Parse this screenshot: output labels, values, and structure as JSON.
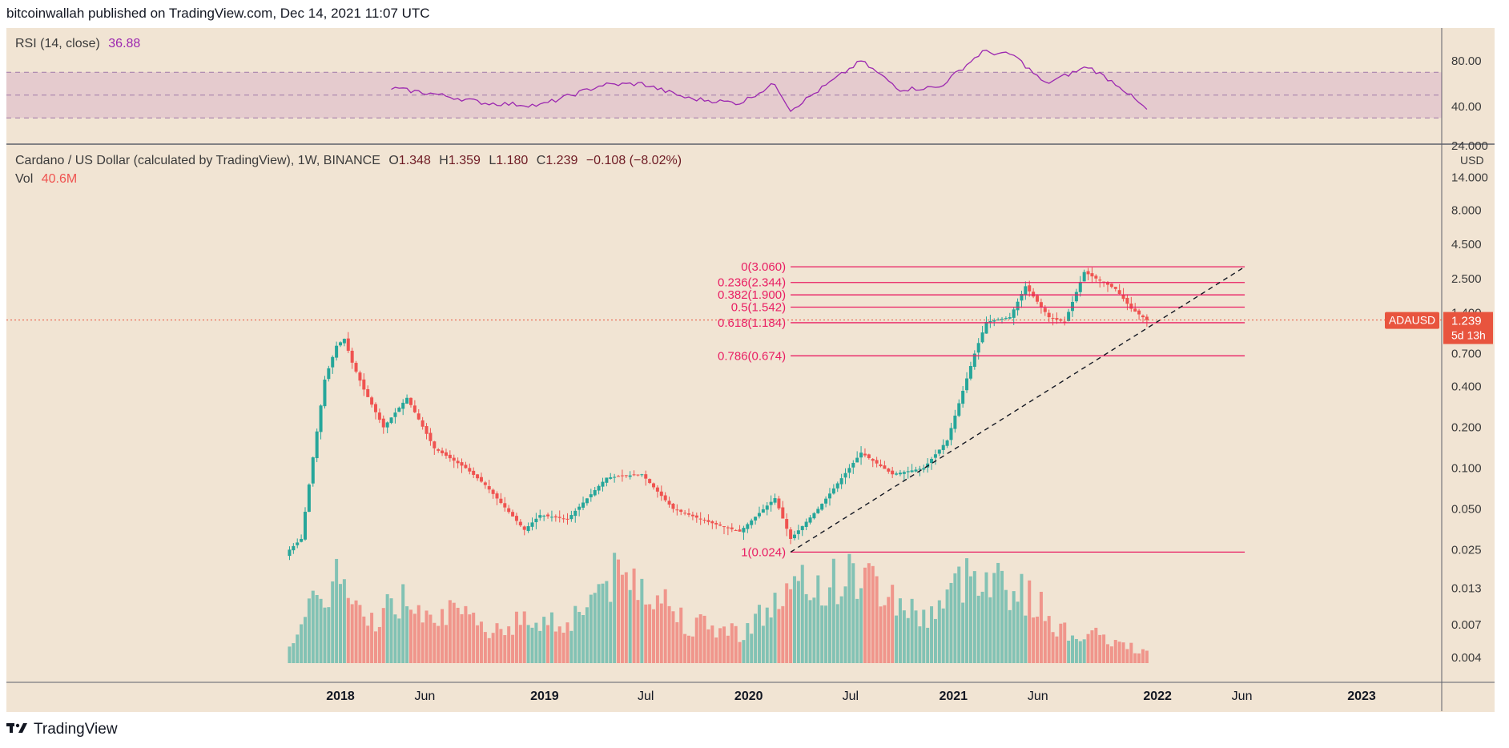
{
  "header": {
    "published": "bitcoinwallah published on TradingView.com, Dec 14, 2021 11:07 UTC"
  },
  "footer": {
    "brand": "TradingView",
    "logo_icon": "tradingview-logo-icon"
  },
  "colors": {
    "bg": "#f1e4d3",
    "up": "#26a69a",
    "down": "#ef5350",
    "fib": "#e91e63",
    "rsi": "#9c27b0",
    "price_tag": "#e8543e"
  },
  "rsi_legend": {
    "label": "RSI (14, close)",
    "value": "36.88"
  },
  "main_legend": {
    "symbol": "Cardano / US Dollar (calculated by TradingView), 1W, BINANCE",
    "o_label": "O",
    "o": "1.348",
    "h_label": "H",
    "h": "1.359",
    "l_label": "L",
    "l": "1.180",
    "c_label": "C",
    "c": "1.239",
    "change": "−0.108 (−8.02%)",
    "vol_label": "Vol",
    "vol": "40.6M"
  },
  "price_axis": {
    "currency": "USD",
    "ticker": "ADAUSD",
    "last": "1.239",
    "countdown": "5d 13h"
  },
  "chart_data": {
    "type": "candlestick",
    "symbol": "ADAUSD",
    "interval": "1W",
    "y_scale": "log",
    "price_ticks": [
      "24.000",
      "14.000",
      "8.000",
      "4.500",
      "2.500",
      "1.400",
      "0.700",
      "0.400",
      "0.200",
      "0.100",
      "0.050",
      "0.025",
      "0.013",
      "0.007",
      "0.004"
    ],
    "rsi_ticks": [
      "80.00",
      "40.00"
    ],
    "rsi_band": [
      30,
      70
    ],
    "x_ticks": [
      {
        "label": "2018",
        "date": "2018-01-01"
      },
      {
        "label": "Jun",
        "date": "2018-06-01"
      },
      {
        "label": "2019",
        "date": "2019-01-01"
      },
      {
        "label": "Jul",
        "date": "2019-07-01"
      },
      {
        "label": "2020",
        "date": "2020-01-01"
      },
      {
        "label": "Jul",
        "date": "2020-07-01"
      },
      {
        "label": "2021",
        "date": "2021-01-01"
      },
      {
        "label": "Jun",
        "date": "2021-06-01"
      },
      {
        "label": "2022",
        "date": "2022-01-01"
      },
      {
        "label": "Jun",
        "date": "2022-06-01"
      },
      {
        "label": "2023",
        "date": "2023-01-01"
      }
    ],
    "price_anchors": [
      {
        "date": "2017-10-02",
        "price": 0.025
      },
      {
        "date": "2017-10-23",
        "price": 0.03
      },
      {
        "date": "2017-11-13",
        "price": 0.12
      },
      {
        "date": "2017-12-04",
        "price": 0.45
      },
      {
        "date": "2017-12-25",
        "price": 0.8
      },
      {
        "date": "2018-01-08",
        "price": 0.9
      },
      {
        "date": "2018-01-22",
        "price": 0.6
      },
      {
        "date": "2018-02-12",
        "price": 0.38
      },
      {
        "date": "2018-03-19",
        "price": 0.2
      },
      {
        "date": "2018-04-30",
        "price": 0.33
      },
      {
        "date": "2018-06-18",
        "price": 0.14
      },
      {
        "date": "2018-08-13",
        "price": 0.1
      },
      {
        "date": "2018-09-17",
        "price": 0.075
      },
      {
        "date": "2018-11-26",
        "price": 0.035
      },
      {
        "date": "2018-12-24",
        "price": 0.045
      },
      {
        "date": "2019-02-11",
        "price": 0.042
      },
      {
        "date": "2019-04-22",
        "price": 0.085
      },
      {
        "date": "2019-06-24",
        "price": 0.09
      },
      {
        "date": "2019-08-19",
        "price": 0.05
      },
      {
        "date": "2019-10-21",
        "price": 0.04
      },
      {
        "date": "2019-12-16",
        "price": 0.034
      },
      {
        "date": "2020-02-17",
        "price": 0.06
      },
      {
        "date": "2020-03-16",
        "price": 0.03
      },
      {
        "date": "2020-05-04",
        "price": 0.05
      },
      {
        "date": "2020-07-20",
        "price": 0.13
      },
      {
        "date": "2020-09-14",
        "price": 0.09
      },
      {
        "date": "2020-11-09",
        "price": 0.1
      },
      {
        "date": "2020-12-21",
        "price": 0.16
      },
      {
        "date": "2021-02-08",
        "price": 0.7
      },
      {
        "date": "2021-03-01",
        "price": 1.2
      },
      {
        "date": "2021-04-12",
        "price": 1.3
      },
      {
        "date": "2021-05-10",
        "price": 2.2
      },
      {
        "date": "2021-06-21",
        "price": 1.3
      },
      {
        "date": "2021-07-19",
        "price": 1.2
      },
      {
        "date": "2021-08-23",
        "price": 2.8
      },
      {
        "date": "2021-09-06",
        "price": 2.6
      },
      {
        "date": "2021-10-18",
        "price": 2.1
      },
      {
        "date": "2021-11-15",
        "price": 1.5
      },
      {
        "date": "2021-12-13",
        "price": 1.239
      }
    ],
    "rsi_anchors": [
      {
        "date": "2018-04-02",
        "value": 56
      },
      {
        "date": "2018-06-18",
        "value": 51
      },
      {
        "date": "2018-09-17",
        "value": 43
      },
      {
        "date": "2018-12-24",
        "value": 41
      },
      {
        "date": "2019-04-15",
        "value": 59
      },
      {
        "date": "2019-06-24",
        "value": 60
      },
      {
        "date": "2019-09-16",
        "value": 47
      },
      {
        "date": "2019-12-16",
        "value": 43
      },
      {
        "date": "2020-02-17",
        "value": 60
      },
      {
        "date": "2020-03-16",
        "value": 37
      },
      {
        "date": "2020-06-15",
        "value": 68
      },
      {
        "date": "2020-07-20",
        "value": 80
      },
      {
        "date": "2020-09-28",
        "value": 55
      },
      {
        "date": "2020-12-07",
        "value": 57
      },
      {
        "date": "2021-02-22",
        "value": 88
      },
      {
        "date": "2021-04-19",
        "value": 85
      },
      {
        "date": "2021-06-14",
        "value": 60
      },
      {
        "date": "2021-08-30",
        "value": 75
      },
      {
        "date": "2021-10-25",
        "value": 58
      },
      {
        "date": "2021-12-13",
        "value": 36.88
      }
    ],
    "volume_anchors": [
      {
        "date": "2017-10-02",
        "value": 0.25
      },
      {
        "date": "2017-12-25",
        "value": 1.0
      },
      {
        "date": "2018-02-12",
        "value": 0.45
      },
      {
        "date": "2018-04-30",
        "value": 0.75
      },
      {
        "date": "2018-09-17",
        "value": 0.4
      },
      {
        "date": "2018-12-24",
        "value": 0.5
      },
      {
        "date": "2019-02-11",
        "value": 0.45
      },
      {
        "date": "2019-04-22",
        "value": 0.95
      },
      {
        "date": "2019-06-24",
        "value": 0.95
      },
      {
        "date": "2019-09-16",
        "value": 0.45
      },
      {
        "date": "2019-12-16",
        "value": 0.35
      },
      {
        "date": "2020-03-16",
        "value": 0.8
      },
      {
        "date": "2020-07-20",
        "value": 1.0
      },
      {
        "date": "2020-11-09",
        "value": 0.5
      },
      {
        "date": "2021-02-15",
        "value": 1.1
      },
      {
        "date": "2021-05-24",
        "value": 0.7
      },
      {
        "date": "2021-07-19",
        "value": 0.35
      },
      {
        "date": "2021-09-13",
        "value": 0.3
      },
      {
        "date": "2021-12-13",
        "value": 0.12
      }
    ],
    "fib_levels": [
      {
        "label": "0(3.060)",
        "price": 3.06
      },
      {
        "label": "0.236(2.344)",
        "price": 2.344
      },
      {
        "label": "0.382(1.900)",
        "price": 1.9
      },
      {
        "label": "0.5(1.542)",
        "price": 1.542
      },
      {
        "label": "0.618(1.184)",
        "price": 1.184
      },
      {
        "label": "0.786(0.674)",
        "price": 0.674
      },
      {
        "label": "1(0.024)",
        "price": 0.024
      }
    ],
    "fib_range": {
      "start": "2020-03-16",
      "end": "2022-06-06"
    },
    "trendline": {
      "start_date": "2020-03-16",
      "start_price": 0.024,
      "end_date": "2022-06-06",
      "end_price": 3.06
    },
    "current_price": 1.239
  }
}
